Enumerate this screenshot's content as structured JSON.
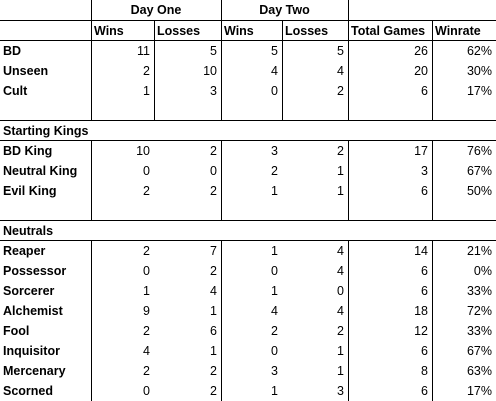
{
  "header": {
    "group_day_one": "Day One",
    "group_day_two": "Day Two",
    "columns": [
      "Wins",
      "Losses",
      "Wins",
      "Losses",
      "Total Games",
      "Winrate"
    ]
  },
  "teams": [
    {
      "name": "BD",
      "cells": [
        "11",
        "5",
        "5",
        "5",
        "26",
        "62%"
      ]
    },
    {
      "name": "Unseen",
      "cells": [
        "2",
        "10",
        "4",
        "4",
        "20",
        "30%"
      ]
    },
    {
      "name": "Cult",
      "cells": [
        "1",
        "3",
        "0",
        "2",
        "6",
        "17%"
      ]
    }
  ],
  "kings": {
    "title": "Starting Kings",
    "rows": [
      {
        "name": "BD King",
        "cells": [
          "10",
          "2",
          "3",
          "2",
          "17",
          "76%"
        ]
      },
      {
        "name": "Neutral King",
        "cells": [
          "0",
          "0",
          "2",
          "1",
          "3",
          "67%"
        ]
      },
      {
        "name": "Evil King",
        "cells": [
          "2",
          "2",
          "1",
          "1",
          "6",
          "50%"
        ]
      }
    ]
  },
  "neutrals": {
    "title": "Neutrals",
    "rows": [
      {
        "name": "Reaper",
        "cells": [
          "2",
          "7",
          "1",
          "4",
          "14",
          "21%"
        ]
      },
      {
        "name": "Possessor",
        "cells": [
          "0",
          "2",
          "0",
          "4",
          "6",
          "0%"
        ]
      },
      {
        "name": "Sorcerer",
        "cells": [
          "1",
          "4",
          "1",
          "0",
          "6",
          "33%"
        ]
      },
      {
        "name": "Alchemist",
        "cells": [
          "9",
          "1",
          "4",
          "4",
          "18",
          "72%"
        ]
      },
      {
        "name": "Fool",
        "cells": [
          "2",
          "6",
          "2",
          "2",
          "12",
          "33%"
        ]
      },
      {
        "name": "Inquisitor",
        "cells": [
          "4",
          "1",
          "0",
          "1",
          "6",
          "67%"
        ]
      },
      {
        "name": "Mercenary",
        "cells": [
          "2",
          "2",
          "3",
          "1",
          "8",
          "63%"
        ]
      },
      {
        "name": "Scorned",
        "cells": [
          "0",
          "2",
          "1",
          "3",
          "6",
          "17%"
        ]
      }
    ]
  }
}
